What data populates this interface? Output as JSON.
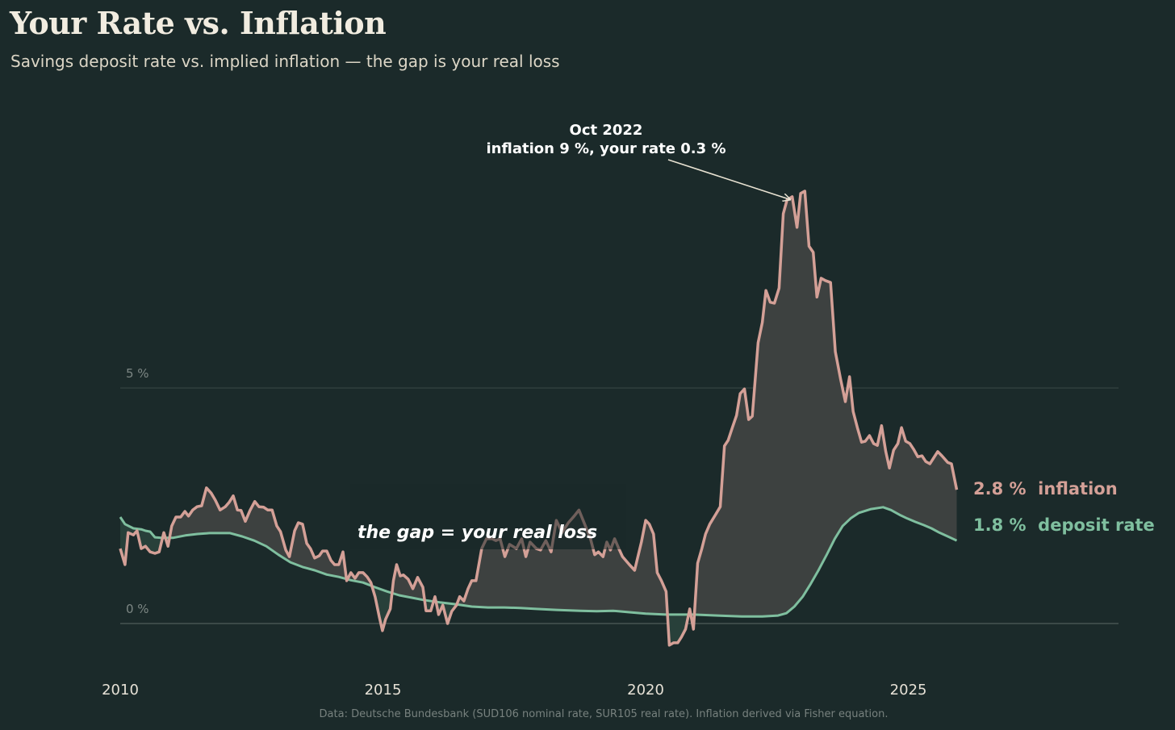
{
  "header": {
    "title": "Your Rate vs. Inflation",
    "subtitle": "Savings deposit rate vs. implied inflation — the gap is your real loss"
  },
  "footer": "Data: Deutsche Bundesbank (SUD106 nominal rate, SUR105 real rate).  Inflation derived via Fisher equation.",
  "colors": {
    "background": "#1b2a2a",
    "inflation": "#d4a097",
    "deposit": "#7fbf9f",
    "gap_fill": "#3d4140",
    "neg_gap_fill": "#28403a"
  },
  "chart_data": {
    "type": "line",
    "title": "Your Rate vs. Inflation",
    "xlabel": "",
    "ylabel": "",
    "xlim": [
      2010,
      2029
    ],
    "ylim": [
      -0.6,
      10
    ],
    "grid": {
      "y_lines": [
        0,
        5
      ]
    },
    "x_ticks": [
      {
        "value": 2010,
        "label": "2010"
      },
      {
        "value": 2015,
        "label": "2015"
      },
      {
        "value": 2020,
        "label": "2020"
      },
      {
        "value": 2025,
        "label": "2025"
      }
    ],
    "y_ticks": [
      {
        "value": 5,
        "label": "5 %"
      },
      {
        "value": 0,
        "label": "0 %"
      }
    ],
    "series": [
      {
        "name": "inflation",
        "end_label": "2.8 %  inflation",
        "color": "#d4a097",
        "points": [
          [
            2010.0,
            1.59
          ],
          [
            2010.09,
            1.25
          ],
          [
            2010.15,
            1.93
          ],
          [
            2010.25,
            1.88
          ],
          [
            2010.32,
            1.97
          ],
          [
            2010.4,
            1.59
          ],
          [
            2010.48,
            1.64
          ],
          [
            2010.57,
            1.52
          ],
          [
            2010.66,
            1.49
          ],
          [
            2010.74,
            1.52
          ],
          [
            2010.83,
            1.93
          ],
          [
            2010.91,
            1.64
          ],
          [
            2010.98,
            2.07
          ],
          [
            2011.06,
            2.26
          ],
          [
            2011.15,
            2.26
          ],
          [
            2011.23,
            2.38
          ],
          [
            2011.3,
            2.28
          ],
          [
            2011.38,
            2.41
          ],
          [
            2011.46,
            2.48
          ],
          [
            2011.55,
            2.5
          ],
          [
            2011.64,
            2.88
          ],
          [
            2011.73,
            2.77
          ],
          [
            2011.81,
            2.62
          ],
          [
            2011.9,
            2.41
          ],
          [
            2012.0,
            2.48
          ],
          [
            2012.07,
            2.57
          ],
          [
            2012.15,
            2.71
          ],
          [
            2012.23,
            2.41
          ],
          [
            2012.3,
            2.4
          ],
          [
            2012.38,
            2.17
          ],
          [
            2012.47,
            2.4
          ],
          [
            2012.56,
            2.59
          ],
          [
            2012.64,
            2.48
          ],
          [
            2012.73,
            2.47
          ],
          [
            2012.81,
            2.41
          ],
          [
            2012.89,
            2.41
          ],
          [
            2012.98,
            2.07
          ],
          [
            2013.05,
            1.95
          ],
          [
            2013.15,
            1.56
          ],
          [
            2013.22,
            1.42
          ],
          [
            2013.32,
            1.97
          ],
          [
            2013.39,
            2.14
          ],
          [
            2013.47,
            2.11
          ],
          [
            2013.55,
            1.7
          ],
          [
            2013.62,
            1.59
          ],
          [
            2013.7,
            1.39
          ],
          [
            2013.79,
            1.44
          ],
          [
            2013.85,
            1.54
          ],
          [
            2013.93,
            1.54
          ],
          [
            2014.01,
            1.34
          ],
          [
            2014.08,
            1.25
          ],
          [
            2014.16,
            1.25
          ],
          [
            2014.24,
            1.52
          ],
          [
            2014.31,
            0.91
          ],
          [
            2014.39,
            1.08
          ],
          [
            2014.47,
            0.96
          ],
          [
            2014.54,
            1.08
          ],
          [
            2014.62,
            1.08
          ],
          [
            2014.7,
            0.99
          ],
          [
            2014.77,
            0.87
          ],
          [
            2014.85,
            0.57
          ],
          [
            2014.93,
            0.14
          ],
          [
            2014.99,
            -0.15
          ],
          [
            2015.05,
            0.09
          ],
          [
            2015.14,
            0.31
          ],
          [
            2015.2,
            0.91
          ],
          [
            2015.26,
            1.25
          ],
          [
            2015.33,
            1.01
          ],
          [
            2015.39,
            1.03
          ],
          [
            2015.48,
            0.94
          ],
          [
            2015.57,
            0.74
          ],
          [
            2015.66,
            0.98
          ],
          [
            2015.76,
            0.77
          ],
          [
            2015.82,
            0.27
          ],
          [
            2015.91,
            0.27
          ],
          [
            2015.99,
            0.57
          ],
          [
            2016.06,
            0.19
          ],
          [
            2016.14,
            0.39
          ],
          [
            2016.23,
            0.0
          ],
          [
            2016.31,
            0.26
          ],
          [
            2016.4,
            0.39
          ],
          [
            2016.46,
            0.57
          ],
          [
            2016.54,
            0.48
          ],
          [
            2016.62,
            0.74
          ],
          [
            2016.69,
            0.91
          ],
          [
            2016.77,
            0.91
          ],
          [
            2016.88,
            1.59
          ],
          [
            2016.97,
            1.8
          ],
          [
            2017.08,
            1.8
          ],
          [
            2017.15,
            1.76
          ],
          [
            2017.23,
            1.8
          ],
          [
            2017.32,
            1.42
          ],
          [
            2017.41,
            1.68
          ],
          [
            2017.54,
            1.59
          ],
          [
            2017.64,
            1.8
          ],
          [
            2017.72,
            1.42
          ],
          [
            2017.8,
            1.73
          ],
          [
            2017.92,
            1.59
          ],
          [
            2018.0,
            1.56
          ],
          [
            2018.1,
            1.76
          ],
          [
            2018.2,
            1.52
          ],
          [
            2018.3,
            2.19
          ],
          [
            2018.41,
            1.93
          ],
          [
            2018.53,
            2.14
          ],
          [
            2018.64,
            2.28
          ],
          [
            2018.73,
            2.41
          ],
          [
            2018.84,
            2.11
          ],
          [
            2018.95,
            1.8
          ],
          [
            2019.03,
            1.46
          ],
          [
            2019.1,
            1.52
          ],
          [
            2019.19,
            1.42
          ],
          [
            2019.26,
            1.73
          ],
          [
            2019.33,
            1.56
          ],
          [
            2019.41,
            1.8
          ],
          [
            2019.49,
            1.59
          ],
          [
            2019.56,
            1.42
          ],
          [
            2019.69,
            1.25
          ],
          [
            2019.79,
            1.13
          ],
          [
            2019.92,
            1.73
          ],
          [
            2020.0,
            2.19
          ],
          [
            2020.07,
            2.11
          ],
          [
            2020.15,
            1.9
          ],
          [
            2020.22,
            1.08
          ],
          [
            2020.3,
            0.91
          ],
          [
            2020.39,
            0.68
          ],
          [
            2020.45,
            -0.46
          ],
          [
            2020.53,
            -0.41
          ],
          [
            2020.61,
            -0.41
          ],
          [
            2020.68,
            -0.29
          ],
          [
            2020.76,
            -0.12
          ],
          [
            2020.84,
            0.31
          ],
          [
            2020.91,
            -0.12
          ],
          [
            2020.99,
            1.28
          ],
          [
            2021.07,
            1.59
          ],
          [
            2021.14,
            1.9
          ],
          [
            2021.22,
            2.11
          ],
          [
            2021.33,
            2.31
          ],
          [
            2021.42,
            2.48
          ],
          [
            2021.5,
            3.77
          ],
          [
            2021.57,
            3.89
          ],
          [
            2021.65,
            4.16
          ],
          [
            2021.73,
            4.42
          ],
          [
            2021.8,
            4.88
          ],
          [
            2021.88,
            4.98
          ],
          [
            2021.96,
            4.33
          ],
          [
            2022.03,
            4.4
          ],
          [
            2022.14,
            5.96
          ],
          [
            2022.22,
            6.39
          ],
          [
            2022.29,
            7.07
          ],
          [
            2022.37,
            6.82
          ],
          [
            2022.45,
            6.8
          ],
          [
            2022.54,
            7.12
          ],
          [
            2022.62,
            8.7
          ],
          [
            2022.69,
            8.99
          ],
          [
            2022.79,
            9.06
          ],
          [
            2022.88,
            8.41
          ],
          [
            2022.95,
            9.13
          ],
          [
            2023.03,
            9.18
          ],
          [
            2023.11,
            8.01
          ],
          [
            2023.19,
            7.88
          ],
          [
            2023.26,
            6.93
          ],
          [
            2023.34,
            7.33
          ],
          [
            2023.42,
            7.28
          ],
          [
            2023.52,
            7.24
          ],
          [
            2023.61,
            5.77
          ],
          [
            2023.71,
            5.19
          ],
          [
            2023.8,
            4.71
          ],
          [
            2023.88,
            5.24
          ],
          [
            2023.95,
            4.5
          ],
          [
            2024.03,
            4.16
          ],
          [
            2024.11,
            3.85
          ],
          [
            2024.18,
            3.87
          ],
          [
            2024.26,
            3.99
          ],
          [
            2024.34,
            3.82
          ],
          [
            2024.41,
            3.78
          ],
          [
            2024.49,
            4.2
          ],
          [
            2024.57,
            3.65
          ],
          [
            2024.64,
            3.3
          ],
          [
            2024.72,
            3.68
          ],
          [
            2024.8,
            3.82
          ],
          [
            2024.87,
            4.16
          ],
          [
            2024.95,
            3.87
          ],
          [
            2025.03,
            3.82
          ],
          [
            2025.1,
            3.7
          ],
          [
            2025.18,
            3.54
          ],
          [
            2025.26,
            3.56
          ],
          [
            2025.33,
            3.44
          ],
          [
            2025.41,
            3.39
          ],
          [
            2025.49,
            3.53
          ],
          [
            2025.56,
            3.65
          ],
          [
            2025.64,
            3.56
          ],
          [
            2025.75,
            3.42
          ],
          [
            2025.82,
            3.39
          ],
          [
            2025.92,
            2.84
          ]
        ]
      },
      {
        "name": "deposit rate",
        "end_label": "1.8 %  deposit rate",
        "color": "#7fbf9f",
        "points": [
          [
            2010.0,
            2.26
          ],
          [
            2010.09,
            2.11
          ],
          [
            2010.25,
            2.02
          ],
          [
            2010.4,
            2.0
          ],
          [
            2010.48,
            1.97
          ],
          [
            2010.57,
            1.95
          ],
          [
            2010.66,
            1.83
          ],
          [
            2010.78,
            1.82
          ],
          [
            2011.01,
            1.82
          ],
          [
            2011.24,
            1.87
          ],
          [
            2011.47,
            1.9
          ],
          [
            2011.7,
            1.92
          ],
          [
            2012.09,
            1.92
          ],
          [
            2012.32,
            1.85
          ],
          [
            2012.55,
            1.76
          ],
          [
            2012.78,
            1.64
          ],
          [
            2013.01,
            1.46
          ],
          [
            2013.24,
            1.3
          ],
          [
            2013.47,
            1.2
          ],
          [
            2013.7,
            1.13
          ],
          [
            2013.93,
            1.04
          ],
          [
            2014.16,
            0.99
          ],
          [
            2014.39,
            0.92
          ],
          [
            2014.62,
            0.87
          ],
          [
            2014.85,
            0.77
          ],
          [
            2015.08,
            0.68
          ],
          [
            2015.31,
            0.6
          ],
          [
            2015.54,
            0.55
          ],
          [
            2015.77,
            0.5
          ],
          [
            2016.08,
            0.45
          ],
          [
            2016.39,
            0.41
          ],
          [
            2016.69,
            0.36
          ],
          [
            2017.0,
            0.34
          ],
          [
            2017.31,
            0.34
          ],
          [
            2017.61,
            0.33
          ],
          [
            2017.92,
            0.31
          ],
          [
            2018.3,
            0.29
          ],
          [
            2018.76,
            0.27
          ],
          [
            2019.07,
            0.26
          ],
          [
            2019.38,
            0.27
          ],
          [
            2019.69,
            0.24
          ],
          [
            2020.0,
            0.21
          ],
          [
            2020.38,
            0.19
          ],
          [
            2020.91,
            0.19
          ],
          [
            2021.37,
            0.17
          ],
          [
            2021.83,
            0.15
          ],
          [
            2022.22,
            0.15
          ],
          [
            2022.52,
            0.17
          ],
          [
            2022.68,
            0.22
          ],
          [
            2022.83,
            0.36
          ],
          [
            2022.99,
            0.57
          ],
          [
            2023.14,
            0.84
          ],
          [
            2023.29,
            1.13
          ],
          [
            2023.45,
            1.47
          ],
          [
            2023.6,
            1.8
          ],
          [
            2023.75,
            2.07
          ],
          [
            2023.91,
            2.24
          ],
          [
            2024.06,
            2.35
          ],
          [
            2024.29,
            2.43
          ],
          [
            2024.52,
            2.47
          ],
          [
            2024.67,
            2.41
          ],
          [
            2024.83,
            2.31
          ],
          [
            2024.98,
            2.23
          ],
          [
            2025.13,
            2.16
          ],
          [
            2025.29,
            2.09
          ],
          [
            2025.44,
            2.02
          ],
          [
            2025.59,
            1.93
          ],
          [
            2025.75,
            1.85
          ],
          [
            2025.92,
            1.76
          ]
        ]
      }
    ],
    "annotations": [
      {
        "text_line1": "Oct 2022",
        "text_line2": "inflation 9 %, your rate 0.3 %",
        "target": [
          2022.75,
          9.0
        ]
      },
      {
        "text": "the gap = your real loss"
      }
    ]
  }
}
